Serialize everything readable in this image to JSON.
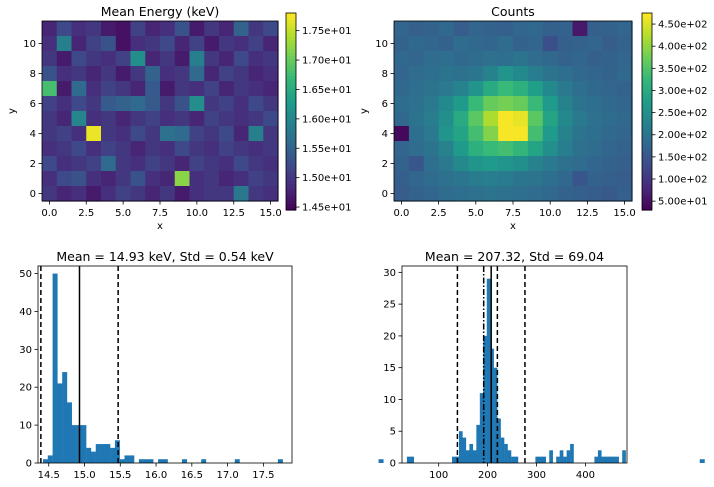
{
  "colors": {
    "viridis": [
      "#440154",
      "#482878",
      "#3e4989",
      "#31688e",
      "#26828e",
      "#1f9e89",
      "#35b779",
      "#6ece58",
      "#b5de2b",
      "#fde725"
    ],
    "bar": "#1f77b4"
  },
  "chart_data": [
    {
      "type": "heatmap",
      "title": "Mean Energy (keV)",
      "xlabel": "x",
      "ylabel": "y",
      "xlim": [
        -0.5,
        15.5
      ],
      "ylim": [
        11.5,
        -0.5
      ],
      "xticks": [
        0,
        2.5,
        5,
        7.5,
        10,
        12.5,
        15
      ],
      "xticklabels": [
        "0.0",
        "2.5",
        "5.0",
        "7.5",
        "10.0",
        "12.5",
        "15.0"
      ],
      "yticks": [
        0,
        2,
        4,
        6,
        8,
        10
      ],
      "yticklabels": [
        "0",
        "2",
        "4",
        "6",
        "8",
        "10"
      ],
      "zlim": [
        14.45,
        17.8
      ],
      "colorbar_ticks": [
        14.5,
        15.0,
        15.5,
        16.0,
        16.5,
        17.0,
        17.5
      ],
      "colorbar_ticklabels": [
        "1.45e+01",
        "1.50e+01",
        "1.55e+01",
        "1.60e+01",
        "1.65e+01",
        "1.70e+01",
        "1.75e+01"
      ],
      "values": [
        [
          14.8,
          15.2,
          14.9,
          15.0,
          14.7,
          14.6,
          15.1,
          14.8,
          14.9,
          15.3,
          14.7,
          15.0,
          14.8,
          15.5,
          15.0,
          15.2
        ],
        [
          14.9,
          15.9,
          14.8,
          15.1,
          15.3,
          14.6,
          14.9,
          15.0,
          15.2,
          14.8,
          15.1,
          14.7,
          15.0,
          14.9,
          15.1,
          14.8
        ],
        [
          15.0,
          14.7,
          15.2,
          15.0,
          14.9,
          15.1,
          16.1,
          14.8,
          15.0,
          14.7,
          15.9,
          15.0,
          14.8,
          15.2,
          14.9,
          15.0
        ],
        [
          15.3,
          14.9,
          15.0,
          14.8,
          15.0,
          14.7,
          15.0,
          15.5,
          14.9,
          15.0,
          15.6,
          14.8,
          15.1,
          15.0,
          14.8,
          14.9
        ],
        [
          16.8,
          14.7,
          15.6,
          14.9,
          15.1,
          15.0,
          14.8,
          15.4,
          14.7,
          15.0,
          14.9,
          15.1,
          14.8,
          15.0,
          14.9,
          14.8
        ],
        [
          15.1,
          14.9,
          15.2,
          15.0,
          15.4,
          15.5,
          15.6,
          15.4,
          15.0,
          15.3,
          16.1,
          15.0,
          15.1,
          14.9,
          15.2,
          15.0
        ],
        [
          15.0,
          14.8,
          16.0,
          14.9,
          15.0,
          14.8,
          15.0,
          15.1,
          14.9,
          15.0,
          14.8,
          15.1,
          15.0,
          14.9,
          15.0,
          15.2
        ],
        [
          15.0,
          15.1,
          14.9,
          17.7,
          15.0,
          14.9,
          15.2,
          15.0,
          15.7,
          15.6,
          15.1,
          15.0,
          15.2,
          14.8,
          15.9,
          15.0
        ],
        [
          14.9,
          15.0,
          15.2,
          14.9,
          15.1,
          15.0,
          14.8,
          15.0,
          14.9,
          15.2,
          15.0,
          14.9,
          15.1,
          15.0,
          14.9,
          15.0
        ],
        [
          15.2,
          14.9,
          15.0,
          15.1,
          15.6,
          15.0,
          14.9,
          15.1,
          15.0,
          14.8,
          15.1,
          15.0,
          14.9,
          15.2,
          15.0,
          14.9
        ],
        [
          14.9,
          15.2,
          15.3,
          14.9,
          14.8,
          15.0,
          15.3,
          14.9,
          14.8,
          17.2,
          14.9,
          15.0,
          14.8,
          14.9,
          15.1,
          15.0
        ],
        [
          15.0,
          14.8,
          14.9,
          14.7,
          14.9,
          15.1,
          15.0,
          14.8,
          15.0,
          14.7,
          14.9,
          15.0,
          15.0,
          15.8,
          15.0,
          14.9
        ]
      ]
    },
    {
      "type": "heatmap",
      "title": "Counts",
      "xlabel": "x",
      "ylabel": "y",
      "xlim": [
        -0.5,
        15.5
      ],
      "ylim": [
        11.5,
        -0.5
      ],
      "xticks": [
        0,
        2.5,
        5,
        7.5,
        10,
        12.5,
        15
      ],
      "xticklabels": [
        "0.0",
        "2.5",
        "5.0",
        "7.5",
        "10.0",
        "12.5",
        "15.0"
      ],
      "yticks": [
        0,
        2,
        4,
        6,
        8,
        10
      ],
      "yticklabels": [
        "0",
        "2",
        "4",
        "6",
        "8",
        "10"
      ],
      "zlim": [
        30,
        475
      ],
      "colorbar_ticks": [
        50,
        100,
        150,
        200,
        250,
        300,
        350,
        400,
        450
      ],
      "colorbar_ticklabels": [
        "5.00e+01",
        "1.00e+02",
        "1.50e+02",
        "2.00e+02",
        "2.50e+02",
        "3.00e+02",
        "3.50e+02",
        "4.00e+02",
        "4.50e+02"
      ],
      "values": [
        [
          175,
          165,
          170,
          180,
          160,
          175,
          170,
          165,
          175,
          180,
          165,
          170,
          60,
          165,
          170,
          175
        ],
        [
          170,
          180,
          175,
          170,
          185,
          180,
          175,
          185,
          170,
          175,
          140,
          165,
          170,
          175,
          160,
          170
        ],
        [
          180,
          175,
          185,
          190,
          180,
          185,
          195,
          190,
          200,
          185,
          180,
          170,
          175,
          165,
          170,
          175
        ],
        [
          175,
          185,
          190,
          200,
          195,
          205,
          230,
          260,
          240,
          220,
          200,
          190,
          180,
          175,
          170,
          180
        ],
        [
          180,
          190,
          200,
          210,
          230,
          260,
          300,
          330,
          310,
          280,
          240,
          210,
          190,
          180,
          175,
          170
        ],
        [
          185,
          195,
          210,
          240,
          270,
          330,
          370,
          380,
          370,
          330,
          270,
          230,
          200,
          190,
          180,
          175
        ],
        [
          180,
          200,
          220,
          250,
          300,
          360,
          420,
          470,
          460,
          360,
          290,
          240,
          210,
          195,
          185,
          180
        ],
        [
          40,
          190,
          210,
          260,
          290,
          340,
          390,
          470,
          470,
          340,
          270,
          230,
          200,
          190,
          180,
          175
        ],
        [
          175,
          185,
          200,
          230,
          270,
          310,
          330,
          340,
          320,
          290,
          250,
          220,
          195,
          185,
          175,
          170
        ],
        [
          170,
          150,
          190,
          210,
          240,
          260,
          270,
          260,
          250,
          230,
          210,
          195,
          185,
          175,
          170,
          165
        ],
        [
          165,
          175,
          185,
          195,
          205,
          215,
          220,
          215,
          205,
          200,
          190,
          180,
          150,
          170,
          165,
          160
        ],
        [
          160,
          170,
          175,
          185,
          190,
          195,
          200,
          195,
          190,
          185,
          180,
          170,
          165,
          160,
          155,
          165
        ]
      ]
    },
    {
      "type": "bar",
      "subtype": "histogram",
      "title": "Mean = 14.93 keV, Std = 0.54 keV",
      "xlim": [
        14.35,
        17.9
      ],
      "ylim": [
        0,
        52
      ],
      "xticks": [
        14.5,
        15.0,
        15.5,
        16.0,
        16.5,
        17.0,
        17.5
      ],
      "xticklabels": [
        "14.5",
        "15.0",
        "15.5",
        "16.0",
        "16.5",
        "17.0",
        "17.5"
      ],
      "yticks": [
        0,
        10,
        20,
        30,
        40,
        50
      ],
      "yticklabels": [
        "0",
        "10",
        "20",
        "30",
        "40",
        "50"
      ],
      "bin_start": 14.42,
      "bin_width": 0.067,
      "counts": [
        1,
        2,
        50,
        21,
        24,
        16,
        10,
        10,
        10,
        4,
        3,
        5,
        5,
        5,
        4,
        6,
        1,
        2,
        2,
        0,
        1,
        1,
        1,
        0,
        1,
        1,
        0,
        0,
        0,
        1,
        0,
        0,
        0,
        1,
        0,
        0,
        0,
        0,
        0,
        0,
        1,
        0,
        0,
        0,
        0,
        0,
        0,
        0,
        0,
        1,
        0,
        0,
        0,
        0,
        0,
        0,
        0,
        0,
        0,
        0,
        0,
        0,
        0,
        0,
        0,
        0,
        0,
        0,
        0,
        0,
        1,
        0,
        0,
        0,
        0,
        0,
        0,
        0,
        0,
        0,
        0,
        0,
        0,
        0,
        0,
        0,
        0,
        0,
        0,
        0,
        0,
        0,
        0,
        0,
        0,
        0,
        0,
        0,
        0,
        0,
        0,
        0,
        0,
        0,
        0,
        0,
        0,
        0,
        0,
        0,
        0,
        0,
        0,
        0,
        0,
        0,
        0,
        0,
        0,
        0,
        0,
        0,
        0,
        0,
        0,
        0,
        0,
        0,
        0,
        0,
        0,
        0,
        0,
        0,
        0,
        0,
        0,
        1
      ],
      "vlines": [
        {
          "x": 14.93,
          "style": "solid"
        },
        {
          "x": 14.39,
          "style": "dashed"
        },
        {
          "x": 15.47,
          "style": "dashed"
        }
      ]
    },
    {
      "type": "bar",
      "subtype": "histogram",
      "title": "Mean = 207.32, Std = 69.04",
      "xlim": [
        25,
        485
      ],
      "ylim": [
        0,
        31
      ],
      "xticks": [
        100,
        200,
        300,
        400
      ],
      "xticklabels": [
        "100",
        "200",
        "300",
        "400"
      ],
      "yticks": [
        0,
        5,
        10,
        15,
        20,
        25,
        30
      ],
      "yticklabels": [
        "0",
        "5",
        "10",
        "15",
        "20",
        "25",
        "30"
      ],
      "bin_start": 35,
      "bin_width": 7.1,
      "counts": [
        1,
        1,
        0,
        0,
        0,
        0,
        0,
        0,
        0,
        0,
        0,
        0,
        0,
        1,
        1,
        5,
        4,
        2,
        3,
        2,
        6,
        11,
        20,
        29,
        18,
        15,
        7,
        4,
        3,
        2,
        1,
        1,
        0,
        0,
        0,
        0,
        0,
        1,
        1,
        1,
        0,
        2,
        0,
        1,
        2,
        1,
        2,
        3,
        0,
        0,
        0,
        0,
        0,
        0,
        1,
        2,
        1,
        1,
        1,
        1,
        1,
        0,
        2
      ],
      "vlines": [
        {
          "x": 207.32,
          "style": "solid"
        },
        {
          "x": 192,
          "style": "dashdot"
        },
        {
          "x": 138.28,
          "style": "dashed"
        },
        {
          "x": 276.36,
          "style": "dashed"
        },
        {
          "x": 220,
          "style": "dashed"
        }
      ]
    }
  ]
}
